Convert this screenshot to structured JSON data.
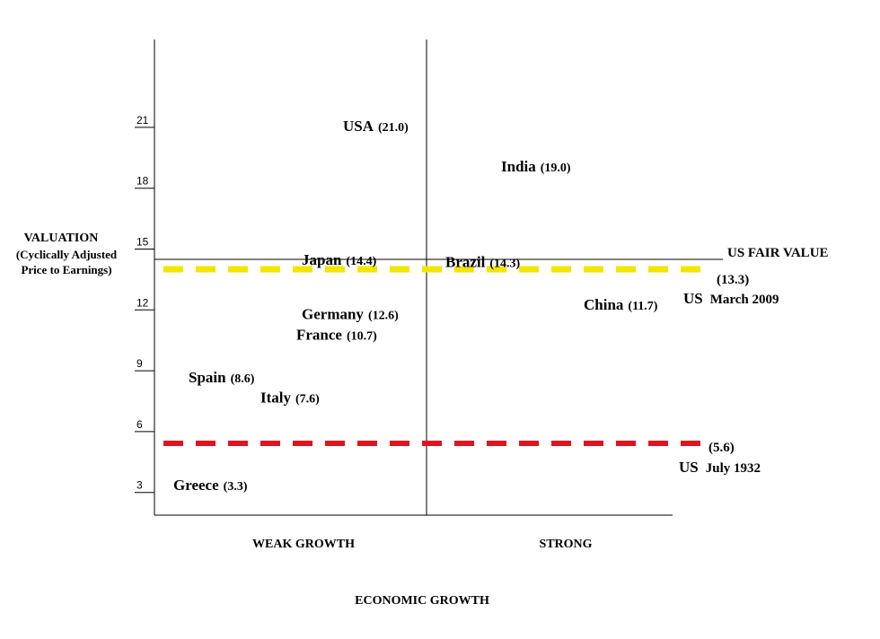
{
  "chart_data": {
    "type": "scatter",
    "ylabel_lines": [
      "VALUATION",
      "(Cyclically Adjusted",
      "Price to Earnings)"
    ],
    "xlabel": "ECONOMIC GROWTH",
    "x_categories": [
      "WEAK GROWTH",
      "STRONG"
    ],
    "y_ticks": [
      3,
      6,
      9,
      12,
      15,
      18,
      21
    ],
    "ylim": [
      1,
      24
    ],
    "points": [
      {
        "name": "USA",
        "label": "(21.0)",
        "value": 21.0,
        "group": "WEAK GROWTH"
      },
      {
        "name": "India",
        "label": "(19.0)",
        "value": 19.0,
        "group": "STRONG"
      },
      {
        "name": "Japan",
        "label": "(14.4)",
        "value": 14.4,
        "group": "WEAK GROWTH"
      },
      {
        "name": "Brazil",
        "label": "(14.3)",
        "value": 14.3,
        "group": "STRONG"
      },
      {
        "name": "Germany",
        "label": "(12.6)",
        "value": 12.6,
        "group": "WEAK GROWTH"
      },
      {
        "name": "France",
        "label": "(10.7)",
        "value": 10.7,
        "group": "WEAK GROWTH"
      },
      {
        "name": "China",
        "label": "(11.7)",
        "value": 11.7,
        "group": "STRONG"
      },
      {
        "name": "Spain",
        "label": "(8.6)",
        "value": 8.6,
        "group": "WEAK GROWTH"
      },
      {
        "name": "Italy",
        "label": "(7.6)",
        "value": 7.6,
        "group": "WEAK GROWTH"
      },
      {
        "name": "Greece",
        "label": "(3.3)",
        "value": 3.3,
        "group": "WEAK GROWTH"
      }
    ],
    "reference_lines": [
      {
        "label": "US FAIR VALUE",
        "style": "solid",
        "color": "#000000"
      },
      {
        "value_label": "(13.3)",
        "label_main": "US",
        "label_small": "March 2009",
        "style": "dashed",
        "color": "#f2e600"
      },
      {
        "value_label": "(5.6)",
        "label_main": "US",
        "label_small": "July 1932",
        "style": "dashed",
        "color": "#e0141e"
      }
    ],
    "grid": false
  }
}
